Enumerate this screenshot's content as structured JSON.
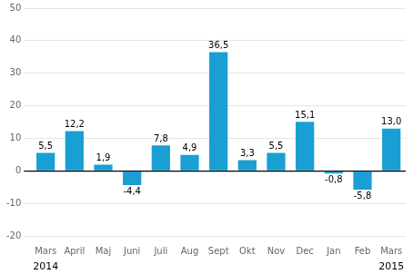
{
  "chart_data": {
    "type": "bar",
    "categories": [
      "Mars",
      "April",
      "Maj",
      "Juni",
      "Juli",
      "Aug",
      "Sept",
      "Okt",
      "Nov",
      "Dec",
      "Jan",
      "Feb",
      "Mars"
    ],
    "values": [
      5.5,
      12.2,
      1.9,
      -4.4,
      7.8,
      4.9,
      36.5,
      3.3,
      5.5,
      15.1,
      -0.8,
      -5.8,
      13.0
    ],
    "value_labels": [
      "5,5",
      "12,2",
      "1,9",
      "-4,4",
      "7,8",
      "4,9",
      "36,5",
      "3,3",
      "5,5",
      "15,1",
      "-0,8",
      "-5,8",
      "13,0"
    ],
    "data_labels": true,
    "color": "#1a9fd4",
    "ylim": [
      -20,
      50
    ],
    "yticks": [
      -20,
      -10,
      0,
      10,
      20,
      30,
      40,
      50
    ],
    "grid": true,
    "annotations": [
      {
        "text": "2014",
        "x": 0
      },
      {
        "text": "2015",
        "x": 12
      }
    ]
  }
}
